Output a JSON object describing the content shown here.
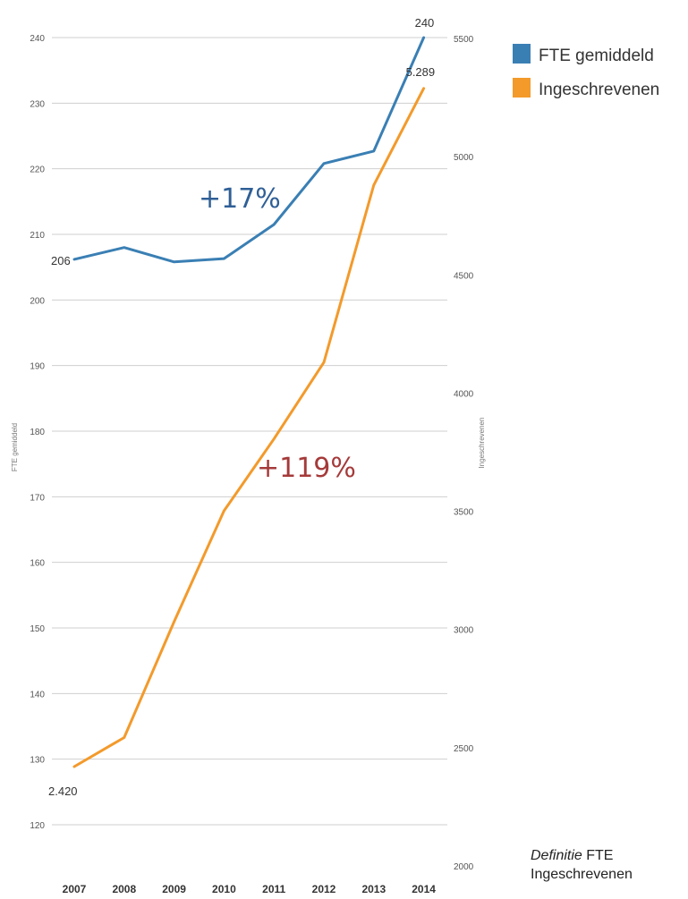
{
  "chart_data": {
    "type": "line",
    "x": [
      2007,
      2008,
      2009,
      2010,
      2011,
      2012,
      2013,
      2014
    ],
    "x_tick_labels": [
      "2007",
      "2008",
      "2009",
      "2010",
      "2011",
      "2012",
      "2013",
      "2014"
    ],
    "series": [
      {
        "name": "FTE gemiddeld",
        "axis": "left",
        "color": "#3a7fb4",
        "values": [
          206.2,
          208.0,
          205.8,
          206.3,
          211.5,
          220.8,
          222.7,
          240.0
        ]
      },
      {
        "name": "Ingeschrevenen",
        "axis": "right",
        "color": "#f39a2b",
        "values": [
          2420,
          2543,
          3033,
          3502,
          3806,
          4130,
          4880,
          5289
        ]
      }
    ],
    "y_left": {
      "label": "FTE gemiddeld",
      "ylim": [
        115,
        245
      ],
      "ticks": [
        "120",
        "130",
        "140",
        "150",
        "160",
        "170",
        "180",
        "190",
        "200",
        "210",
        "220",
        "230",
        "240"
      ]
    },
    "y_right": {
      "label": "Ingeschrevenen",
      "ylim": [
        1950,
        5600
      ],
      "ticks": [
        "2000",
        "2500",
        "3000",
        "3500",
        "4000",
        "4500",
        "5000",
        "5500"
      ]
    },
    "point_labels": [
      {
        "series": 0,
        "index": 0,
        "text": "206"
      },
      {
        "series": 0,
        "index": 7,
        "text": "240"
      },
      {
        "series": 1,
        "index": 0,
        "text": "2.420"
      },
      {
        "series": 1,
        "index": 7,
        "text": "5.289"
      }
    ],
    "annotations": [
      {
        "text": "+17%",
        "color": "#2f5f96"
      },
      {
        "text": "+119%",
        "color": "#a53a3a"
      }
    ],
    "grid": true,
    "legend_position": "top-right"
  },
  "footnote": {
    "line1_italic": "Definitie",
    "line1_rest": " FTE",
    "line2": "Ingeschrevenen"
  }
}
